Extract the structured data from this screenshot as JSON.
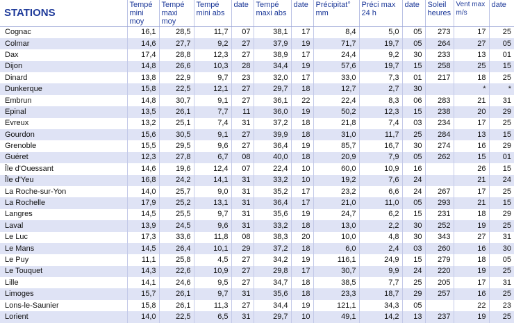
{
  "headers": [
    "STATIONS",
    "Tempé mini moy",
    "Tempé maxi moy",
    "Tempé mini abs",
    "date",
    "Tempé maxi abs",
    "date",
    "Précipitat° mm",
    "Préci max 24 h",
    "date",
    "Soleil heures",
    "Vent max m/s",
    "date"
  ],
  "rows": [
    [
      "Cognac",
      "16,1",
      "28,5",
      "11,7",
      "07",
      "38,1",
      "17",
      "8,4",
      "5,0",
      "05",
      "273",
      "17",
      "25"
    ],
    [
      "Colmar",
      "14,6",
      "27,7",
      "9,2",
      "27",
      "37,9",
      "19",
      "71,7",
      "19,7",
      "05",
      "264",
      "27",
      "05"
    ],
    [
      "Dax",
      "17,4",
      "28,8",
      "12,3",
      "27",
      "38,9",
      "17",
      "24,4",
      "9,2",
      "30",
      "233",
      "13",
      "01"
    ],
    [
      "Dijon",
      "14,8",
      "26,6",
      "10,3",
      "28",
      "34,4",
      "19",
      "57,6",
      "19,7",
      "15",
      "258",
      "25",
      "15"
    ],
    [
      "Dinard",
      "13,8",
      "22,9",
      "9,7",
      "23",
      "32,0",
      "17",
      "33,0",
      "7,3",
      "01",
      "217",
      "18",
      "25"
    ],
    [
      "Dunkerque",
      "15,8",
      "22,5",
      "12,1",
      "27",
      "29,7",
      "18",
      "12,7",
      "2,7",
      "30",
      "",
      "*",
      "*"
    ],
    [
      "Embrun",
      "14,8",
      "30,7",
      "9,1",
      "27",
      "36,1",
      "22",
      "22,4",
      "8,3",
      "06",
      "283",
      "21",
      "31"
    ],
    [
      "Epinal",
      "13,5",
      "26,1",
      "7,7",
      "11",
      "36,0",
      "19",
      "50,2",
      "12,3",
      "15",
      "238",
      "20",
      "29"
    ],
    [
      "Evreux",
      "13,2",
      "25,1",
      "7,4",
      "31",
      "37,2",
      "18",
      "21,8",
      "7,4",
      "03",
      "234",
      "17",
      "25"
    ],
    [
      "Gourdon",
      "15,6",
      "30,5",
      "9,1",
      "27",
      "39,9",
      "18",
      "31,0",
      "11,7",
      "25",
      "284",
      "13",
      "15"
    ],
    [
      "Grenoble",
      "15,5",
      "29,5",
      "9,6",
      "27",
      "36,4",
      "19",
      "85,7",
      "16,7",
      "30",
      "274",
      "16",
      "29"
    ],
    [
      "Guéret",
      "12,3",
      "27,8",
      "6,7",
      "08",
      "40,0",
      "18",
      "20,9",
      "7,9",
      "05",
      "262",
      "15",
      "01"
    ],
    [
      "Île d'Ouessant",
      "14,6",
      "19,6",
      "12,4",
      "07",
      "22,4",
      "10",
      "60,0",
      "10,9",
      "16",
      "",
      "26",
      "15"
    ],
    [
      "Île d'Yeu",
      "16,8",
      "24,2",
      "14,1",
      "31",
      "33,2",
      "10",
      "19,2",
      "7,6",
      "24",
      "",
      "21",
      "24"
    ],
    [
      "La Roche-sur-Yon",
      "14,0",
      "25,7",
      "9,0",
      "31",
      "35,2",
      "17",
      "23,2",
      "6,6",
      "24",
      "267",
      "17",
      "25"
    ],
    [
      "La Rochelle",
      "17,9",
      "25,2",
      "13,1",
      "31",
      "36,4",
      "17",
      "21,0",
      "11,0",
      "05",
      "293",
      "21",
      "15"
    ],
    [
      "Langres",
      "14,5",
      "25,5",
      "9,7",
      "31",
      "35,6",
      "19",
      "24,7",
      "6,2",
      "15",
      "231",
      "18",
      "29"
    ],
    [
      "Laval",
      "13,9",
      "24,5",
      "9,6",
      "31",
      "33,2",
      "18",
      "13,0",
      "2,2",
      "30",
      "252",
      "19",
      "25"
    ],
    [
      "Le Luc",
      "17,3",
      "33,6",
      "11,8",
      "08",
      "38,3",
      "20",
      "10,0",
      "4,8",
      "30",
      "343",
      "27",
      "31"
    ],
    [
      "Le Mans",
      "14,5",
      "26,4",
      "10,1",
      "29",
      "37,2",
      "18",
      "6,0",
      "2,4",
      "03",
      "260",
      "16",
      "30"
    ],
    [
      "Le Puy",
      "11,1",
      "25,8",
      "4,5",
      "27",
      "34,2",
      "19",
      "116,1",
      "24,9",
      "15",
      "279",
      "18",
      "05"
    ],
    [
      "Le Touquet",
      "14,3",
      "22,6",
      "10,9",
      "27",
      "29,8",
      "17",
      "30,7",
      "9,9",
      "24",
      "220",
      "19",
      "25"
    ],
    [
      "Lille",
      "14,1",
      "24,6",
      "9,5",
      "27",
      "34,7",
      "18",
      "38,5",
      "7,7",
      "25",
      "205",
      "17",
      "31"
    ],
    [
      "Limoges",
      "15,7",
      "26,1",
      "9,7",
      "31",
      "35,6",
      "18",
      "23,3",
      "18,7",
      "29",
      "257",
      "16",
      "25"
    ],
    [
      "Lons-le-Saunier",
      "15,8",
      "26,1",
      "11,3",
      "27",
      "34,4",
      "19",
      "121,1",
      "34,3",
      "05",
      "",
      "22",
      "23"
    ],
    [
      "Lorient",
      "14,0",
      "22,5",
      "6,5",
      "31",
      "29,7",
      "10",
      "49,1",
      "14,2",
      "13",
      "237",
      "19",
      "25"
    ]
  ]
}
